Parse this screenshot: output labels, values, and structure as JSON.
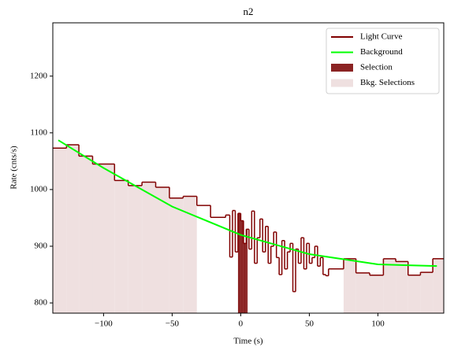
{
  "chart_data": {
    "type": "lightcurve",
    "title": "n2",
    "x_label": "Time (s)",
    "y_label": "Rate (cnts/s)",
    "xlim": [
      -137,
      148
    ],
    "ylim": [
      782,
      1294
    ],
    "xticks": [
      {
        "value": -100,
        "label": "−100"
      },
      {
        "value": -50,
        "label": "−50"
      },
      0,
      50,
      100
    ],
    "yticks": [
      800,
      900,
      1000,
      1100,
      1200
    ],
    "legend": "upper right",
    "series": [
      {
        "name": "Light Curve",
        "color": "#800000",
        "bins": [
          -137,
          -127,
          -118,
          -108,
          -92,
          -82,
          -72,
          -62,
          -52,
          -42,
          -32,
          -22,
          -11,
          -8,
          -6,
          -4,
          -2,
          0,
          2,
          4,
          6,
          8,
          10,
          12,
          14,
          16,
          18,
          20,
          22,
          24,
          26,
          28,
          30,
          32,
          34,
          36,
          38,
          40,
          42,
          44,
          46,
          48,
          50,
          52,
          54,
          56,
          58,
          60,
          62,
          64,
          75,
          84,
          94,
          104,
          113,
          122,
          131,
          140,
          148
        ],
        "values": [
          1073,
          1079,
          1059,
          1045,
          1016,
          1007,
          1013,
          1004,
          985,
          988,
          972,
          951,
          955,
          881,
          963,
          890,
          958,
          945,
          905,
          930,
          895,
          962,
          870,
          915,
          948,
          890,
          935,
          870,
          900,
          925,
          880,
          850,
          910,
          860,
          890,
          905,
          820,
          895,
          870,
          915,
          860,
          905,
          870,
          880,
          900,
          865,
          880,
          850,
          848,
          860,
          878,
          853,
          849,
          878,
          873,
          849,
          854,
          878
        ]
      },
      {
        "name": "Background",
        "color": "#00ff00",
        "x": [
          -133,
          -100,
          -50,
          0,
          50,
          100,
          143
        ],
        "values": [
          1087,
          1038,
          970,
          920,
          886,
          868,
          865
        ]
      }
    ],
    "selections": [
      {
        "name": "Selection",
        "color": "#8b2323",
        "ranges": [
          [
            -2,
            5
          ]
        ]
      },
      {
        "name": "Bkg. Selections",
        "color": "#efe0e0",
        "ranges": [
          [
            -137,
            -32
          ],
          [
            75,
            148
          ]
        ]
      }
    ]
  }
}
